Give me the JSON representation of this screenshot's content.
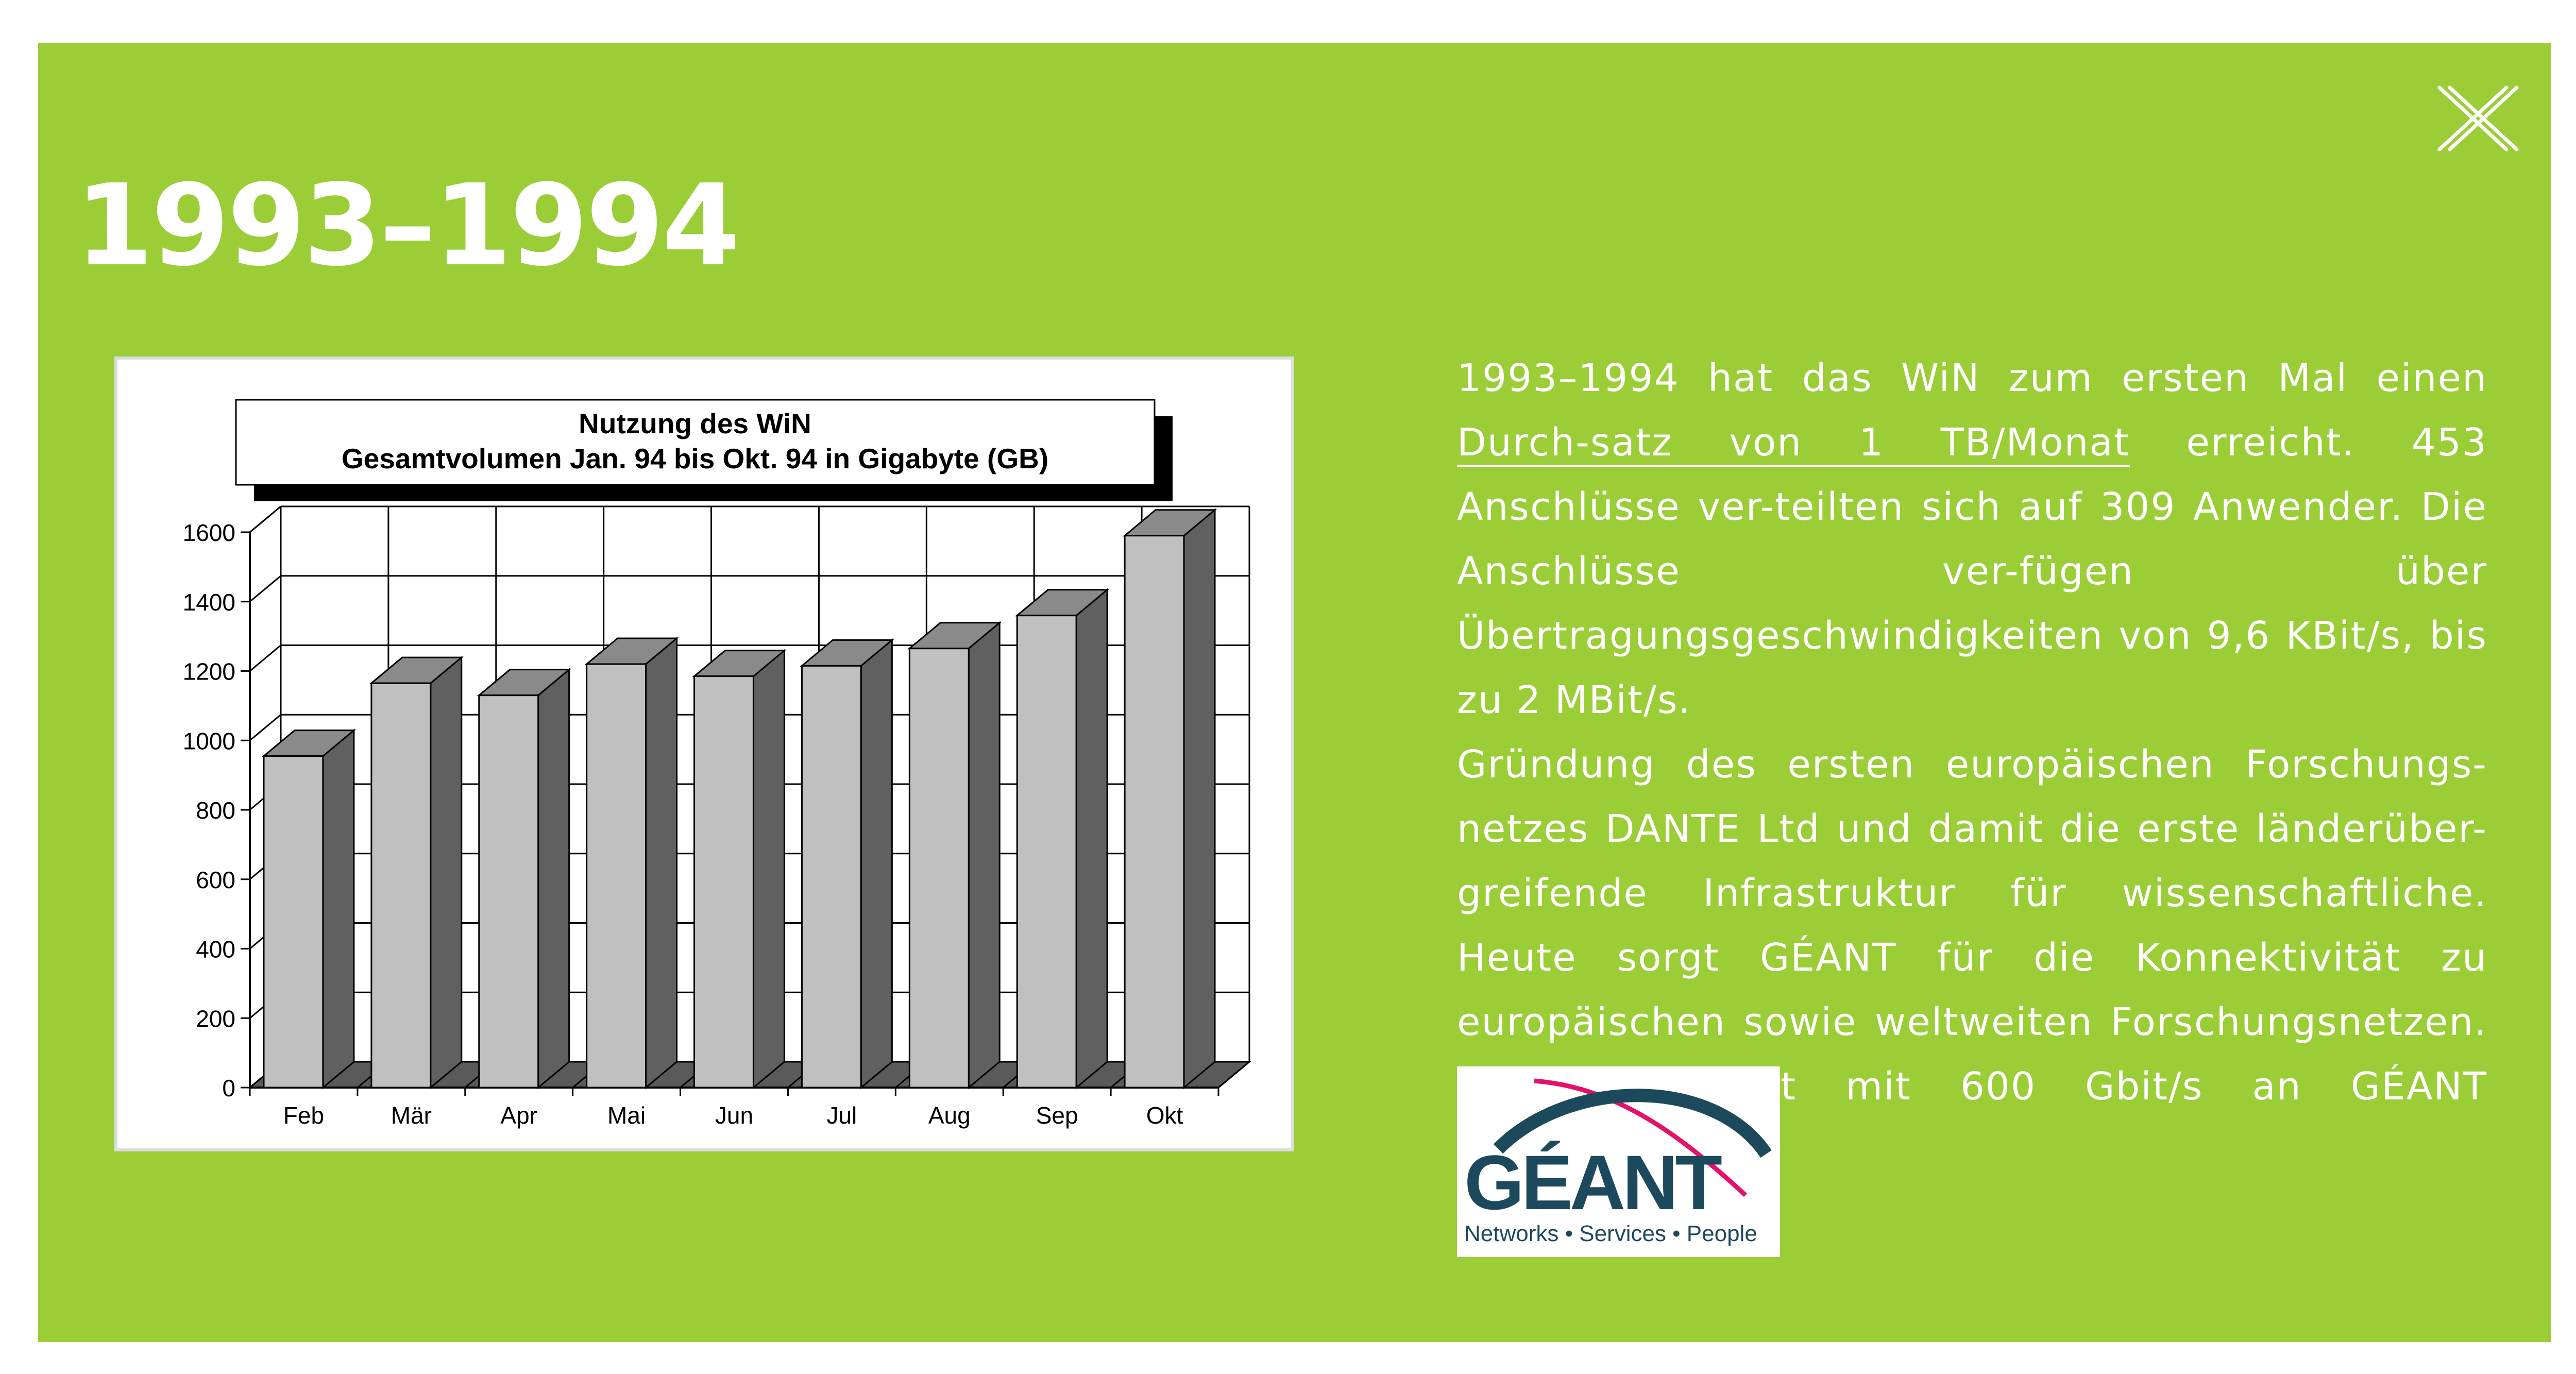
{
  "colors": {
    "panel": "#9acd36",
    "text": "#ffffff",
    "bar_front": "#c0c0c0",
    "bar_side": "#606060",
    "bar_top": "#8a8a8a",
    "logo_dark": "#1c4a5c",
    "logo_pink": "#e4106a"
  },
  "icons": {
    "close": "close-x-icon"
  },
  "heading": "1993–1994",
  "chart_data": {
    "type": "bar",
    "title_line1": "Nutzung des WiN",
    "title_line2": "Gesamtvolumen Jan. 94 bis Okt. 94 in Gigabyte (GB)",
    "categories": [
      "Feb",
      "Mär",
      "Apr",
      "Mai",
      "Jun",
      "Jul",
      "Aug",
      "Sep",
      "Okt"
    ],
    "values": [
      955,
      1165,
      1130,
      1220,
      1185,
      1215,
      1265,
      1360,
      1590
    ],
    "y_ticks": [
      0,
      200,
      400,
      600,
      800,
      1000,
      1200,
      1400,
      1600
    ],
    "ylim": [
      0,
      1600
    ],
    "grid": true,
    "style": "3d-bar"
  },
  "text": {
    "p1_before": "1993–1994 hat das WiN zum ersten Mal einen ",
    "p1_link": "Durch-satz von 1 TB/Monat",
    "p1_after": " erreicht. 453 Anschlüsse ver-teilten sich auf 309 Anwender. Die Anschlüsse ver-fügen über Übertragungsgeschwindigkeiten von 9,6 KBit/s, bis zu 2 MBit/s.",
    "p2": "Gründung des ersten europäischen Forschungs-netzes DANTE Ltd und damit die erste länderüber-greifende Infrastruktur für wissenschaftliche. Heute sorgt GÉANT für die Konnektivität zu europäischen sowie weltweiten Forschungsnetzen. Das X-WiN ist mit 600 Gbit/s an GÉANT angeschlossen."
  },
  "logo": {
    "wordmark": "GÉANT",
    "tagline": "Networks • Services • People"
  }
}
